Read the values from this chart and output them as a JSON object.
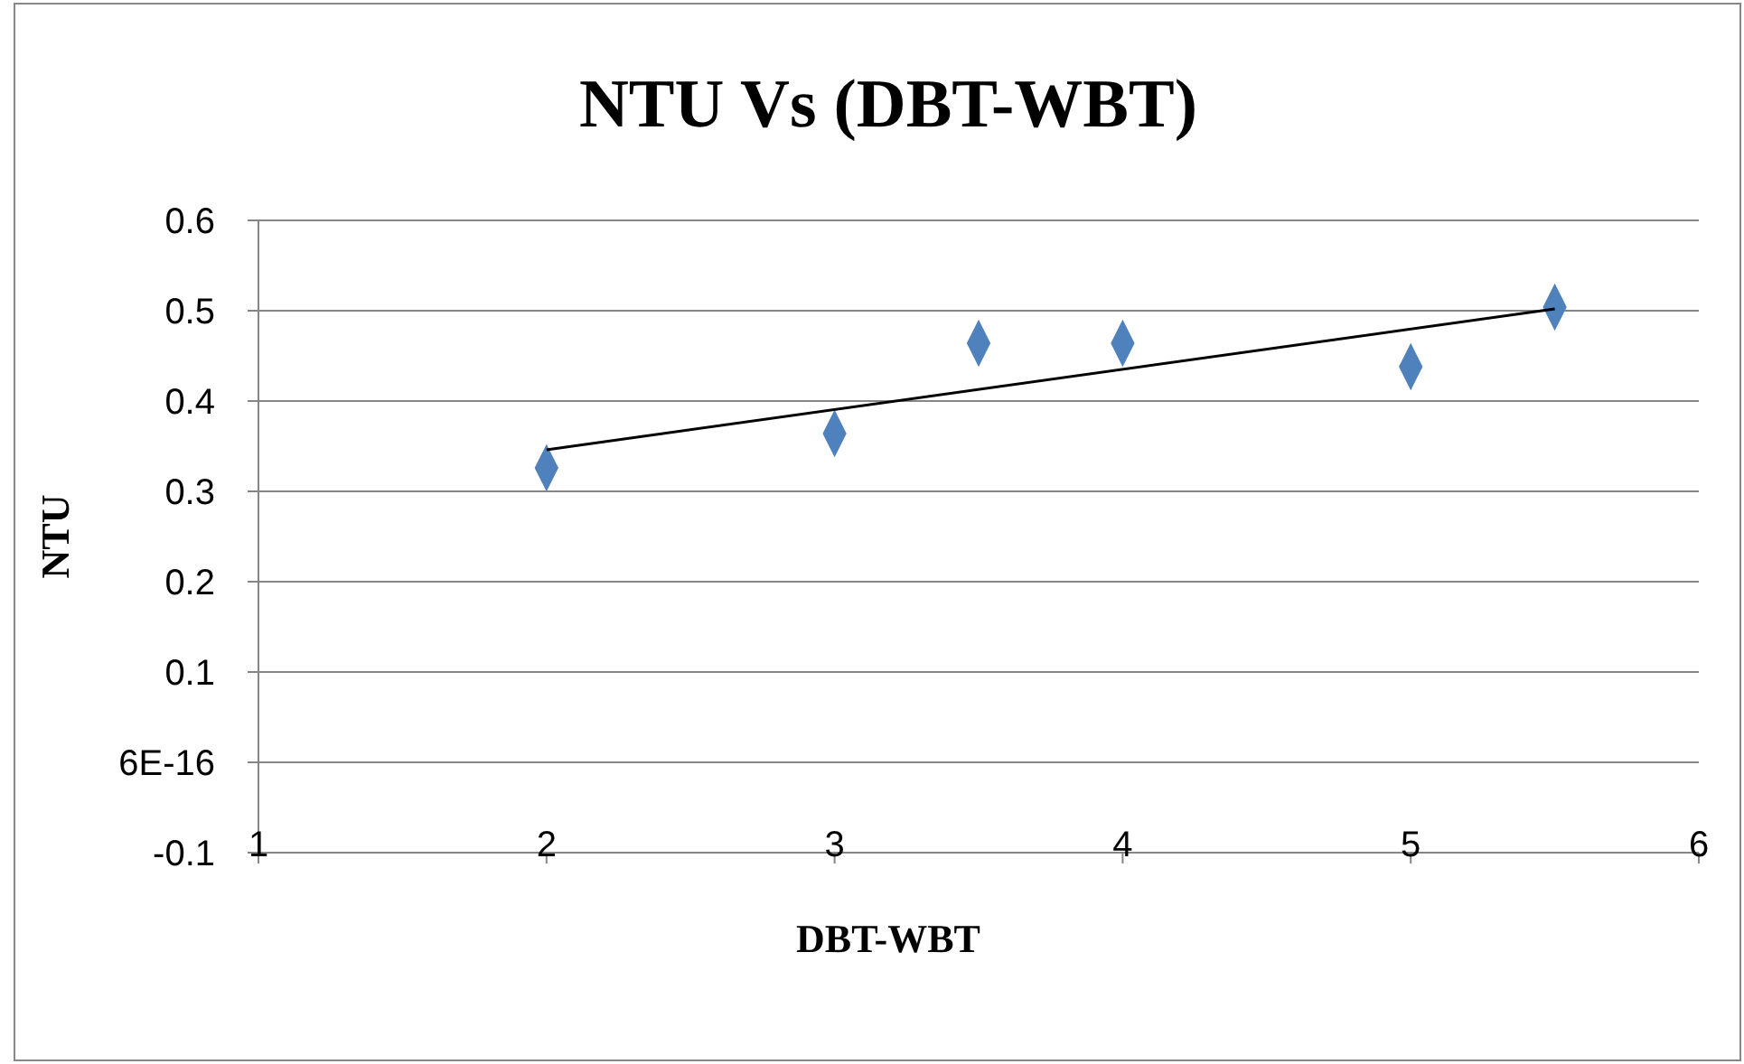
{
  "chart_data": {
    "type": "scatter",
    "title": "NTU Vs (DBT-WBT)",
    "xlabel": "DBT-WBT",
    "ylabel": "NTU",
    "xlim": [
      1,
      6
    ],
    "xticks": [
      1,
      2,
      3,
      4,
      5,
      6
    ],
    "ylim": [
      -0.1,
      0.6
    ],
    "yticks": [
      -0.1,
      {
        "value": 0,
        "label": "6E-16"
      },
      0.1,
      0.2,
      0.3,
      0.4,
      0.5,
      0.6
    ],
    "grid": "y",
    "marker": "diamond",
    "series": [
      {
        "type": "scatter",
        "color": "#4f81bd",
        "x": [
          2,
          3,
          3.5,
          4,
          5,
          5.5
        ],
        "values": [
          0.326,
          0.364,
          0.464,
          0.464,
          0.438,
          0.504
        ]
      },
      {
        "type": "line",
        "color": "#000000",
        "marker": "none",
        "x": [
          2,
          5.5
        ],
        "values": [
          0.346,
          0.502
        ]
      }
    ]
  }
}
